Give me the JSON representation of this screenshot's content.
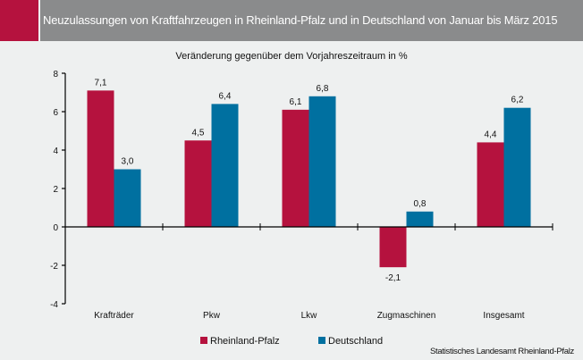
{
  "header": {
    "title": "Neuzulassungen von Kraftfahrzeugen in Rheinland-Pfalz und in Deutschland von Januar bis März 2015"
  },
  "source": "Statistisches Landesamt Rheinland-Pfalz",
  "colors": {
    "rlp": "#b5123e",
    "de": "#0070a0",
    "header_bg": "#8a8b8c"
  },
  "chart_data": {
    "type": "bar",
    "title": "Veränderung gegenüber dem Vorjahreszeitraum in %",
    "xlabel": "",
    "ylabel": "",
    "ylim": [
      -4,
      8
    ],
    "yticks": [
      -4,
      -2,
      0,
      2,
      4,
      6,
      8
    ],
    "ytick_labels": [
      "-4",
      "-2",
      "0",
      "2",
      "4",
      "6",
      "8"
    ],
    "grid": false,
    "legend_position": "bottom",
    "categories": [
      "Krafträder",
      "Pkw",
      "Lkw",
      "Zugmaschinen",
      "Insgesamt"
    ],
    "series": [
      {
        "name": "Rheinland-Pfalz",
        "color": "#b5123e",
        "values": [
          7.1,
          4.5,
          6.1,
          -2.1,
          4.4
        ],
        "labels": [
          "7,1",
          "4,5",
          "6,1",
          "-2,1",
          "4,4"
        ]
      },
      {
        "name": "Deutschland",
        "color": "#0070a0",
        "values": [
          3.0,
          6.4,
          6.8,
          0.8,
          6.2
        ],
        "labels": [
          "3,0",
          "6,4",
          "6,8",
          "0,8",
          "6,2"
        ]
      }
    ]
  }
}
